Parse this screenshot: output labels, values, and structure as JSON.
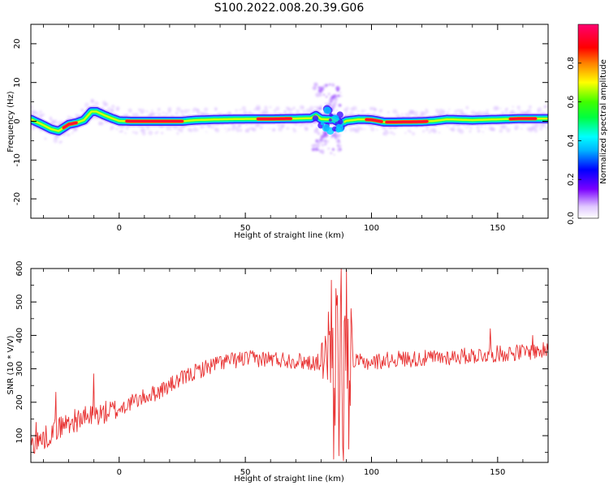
{
  "figure_title": "S100.2022.008.20.39.G06",
  "chart_data": [
    {
      "type": "heatmap",
      "xlabel": "Height of straight line (km)",
      "ylabel": "Frequency (Hz)",
      "xlim": [
        -35,
        170
      ],
      "ylim": [
        -25,
        25
      ],
      "x_ticks": [
        0,
        50,
        100,
        150
      ],
      "y_ticks": [
        -20,
        -10,
        0,
        10,
        20
      ],
      "colorbar_label": "Normalized spectral amplitude",
      "colorbar_range": [
        0.0,
        1.0
      ],
      "colorbar_ticks": [
        "0.0",
        "0.2",
        "0.4",
        "0.6",
        "0.8"
      ],
      "colormap": [
        "#ff0080",
        "#ff0000",
        "#ffff00",
        "#00ff00",
        "#00ffff",
        "#0000ff",
        "#8000ff",
        "#e6ccff"
      ],
      "ridge": {
        "x": [
          -35,
          -30,
          -27,
          -24,
          -20,
          -17,
          -14,
          -11,
          -9,
          -6,
          -3,
          0,
          5,
          15,
          25,
          30,
          40,
          50,
          60,
          70,
          76,
          78,
          80,
          82,
          85,
          88,
          90,
          95,
          100,
          105,
          110,
          120,
          125,
          130,
          140,
          150,
          160,
          170
        ],
        "y": [
          0.5,
          -1.0,
          -2.0,
          -2.5,
          -0.8,
          -0.4,
          0.3,
          2.5,
          2.5,
          1.6,
          0.8,
          0.1,
          0.0,
          0.0,
          0.0,
          0.3,
          0.5,
          0.6,
          0.6,
          0.7,
          0.8,
          1.5,
          0.6,
          0.5,
          0.5,
          -0.6,
          0.1,
          0.5,
          0.4,
          -0.2,
          -0.2,
          -0.1,
          0.1,
          0.5,
          0.3,
          0.5,
          0.7,
          0.7
        ]
      },
      "red_core_segments": [
        [
          -22,
          -17
        ],
        [
          3,
          25
        ],
        [
          55,
          68
        ],
        [
          98,
          104
        ],
        [
          106,
          122
        ],
        [
          155,
          165
        ]
      ],
      "burst_region_x": [
        77,
        88
      ]
    },
    {
      "type": "line",
      "xlabel": "Height of straight line (km)",
      "ylabel": "SNR (10 * V/V)",
      "xlim": [
        -35,
        170
      ],
      "ylim": [
        20,
        600
      ],
      "x_ticks": [
        0,
        50,
        100,
        150
      ],
      "y_ticks": [
        100,
        200,
        300,
        400,
        500,
        600
      ],
      "series_color": "#e83030",
      "trend": {
        "x": [
          -35,
          -30,
          -25,
          -20,
          -15,
          -10,
          -5,
          0,
          5,
          10,
          15,
          20,
          25,
          30,
          35,
          40,
          50,
          60,
          70,
          75,
          80,
          90,
          95,
          100,
          110,
          120,
          130,
          140,
          150,
          160,
          170
        ],
        "y": [
          75,
          90,
          120,
          140,
          150,
          160,
          170,
          180,
          200,
          215,
          230,
          250,
          270,
          290,
          305,
          320,
          330,
          330,
          325,
          320,
          320,
          315,
          320,
          320,
          330,
          330,
          335,
          340,
          345,
          350,
          355
        ]
      },
      "noise_amplitude": 25,
      "spikes": [
        {
          "x": -33,
          "y": 140
        },
        {
          "x": -25,
          "y": 230
        },
        {
          "x": -10,
          "y": 285
        },
        {
          "x": 83,
          "y": 470
        },
        {
          "x": 84,
          "y": 565
        },
        {
          "x": 85,
          "y": 30
        },
        {
          "x": 86,
          "y": 540
        },
        {
          "x": 87,
          "y": 40
        },
        {
          "x": 88,
          "y": 600
        },
        {
          "x": 89,
          "y": 25
        },
        {
          "x": 90,
          "y": 595
        },
        {
          "x": 91,
          "y": 60
        },
        {
          "x": 92,
          "y": 480
        },
        {
          "x": 147,
          "y": 420
        },
        {
          "x": 164,
          "y": 400
        }
      ]
    }
  ]
}
